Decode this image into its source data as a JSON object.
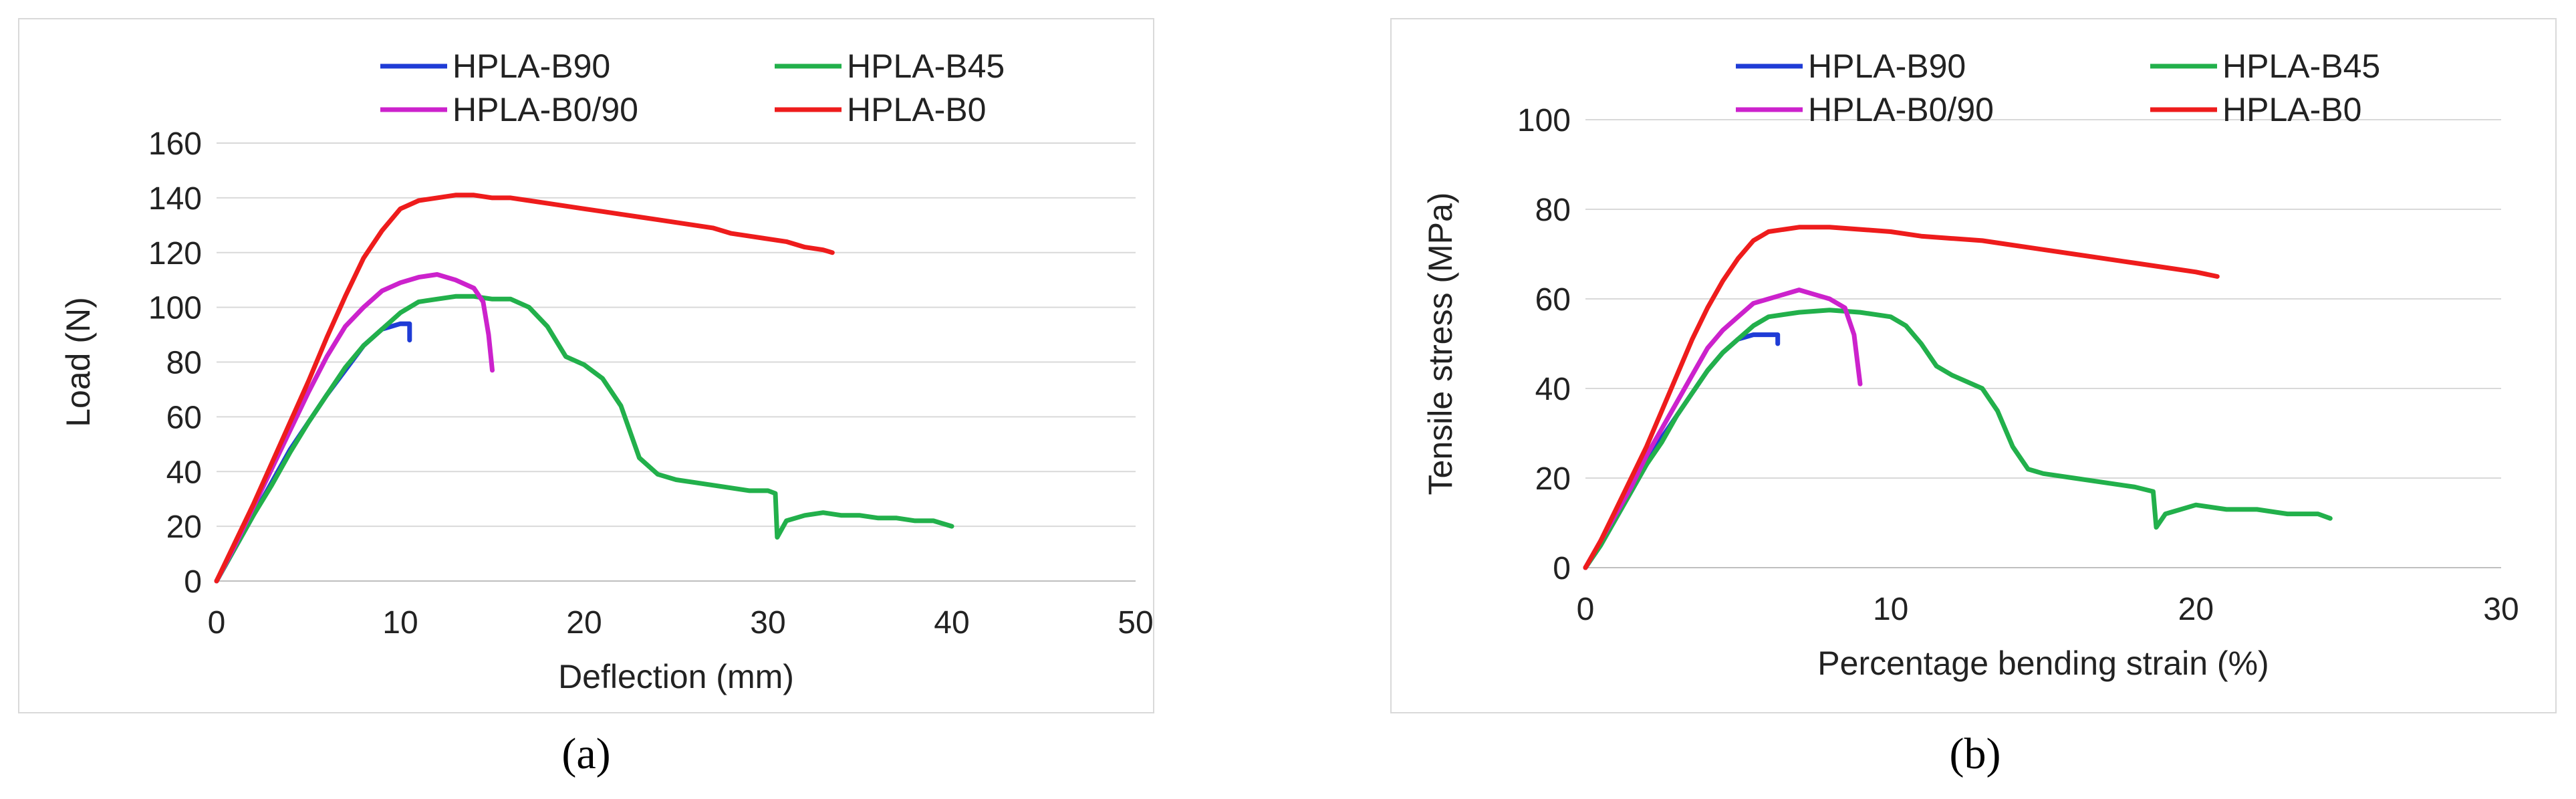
{
  "chart_data": [
    {
      "type": "line",
      "xlabel": "Deflection (mm)",
      "ylabel": "Load (N)",
      "xlim": [
        0,
        50
      ],
      "ylim": [
        0,
        160
      ],
      "xticks": [
        "0",
        "10",
        "20",
        "30",
        "40",
        "50"
      ],
      "yticks": [
        "0",
        "20",
        "40",
        "60",
        "80",
        "100",
        "120",
        "140",
        "160"
      ],
      "grid": "horizontal",
      "legend": "top",
      "series": [
        {
          "name": "HPLA-B90",
          "color": "#1f3cd6",
          "x": [
            0,
            1,
            2,
            3,
            4,
            5,
            6,
            7,
            8,
            9,
            10,
            10.5,
            10.5
          ],
          "y": [
            0,
            12,
            24,
            36,
            48,
            58,
            68,
            77,
            86,
            92,
            94,
            94,
            88
          ]
        },
        {
          "name": "HPLA-B45",
          "color": "#22b04b",
          "x": [
            0,
            1,
            2,
            3,
            4,
            5,
            6,
            7,
            8,
            9,
            10,
            11,
            12,
            13,
            14,
            15,
            16,
            17,
            18,
            19,
            20,
            21,
            22,
            23,
            24,
            25,
            26,
            27,
            28,
            29,
            30,
            30.4,
            30.5,
            31,
            32,
            33,
            34,
            35,
            36,
            37,
            38,
            39,
            40
          ],
          "y": [
            0,
            12,
            24,
            35,
            47,
            58,
            68,
            78,
            86,
            92,
            98,
            102,
            103,
            104,
            104,
            103,
            103,
            100,
            93,
            82,
            79,
            74,
            64,
            45,
            39,
            37,
            36,
            35,
            34,
            33,
            33,
            32,
            16,
            22,
            24,
            25,
            24,
            24,
            23,
            23,
            22,
            22,
            20
          ]
        },
        {
          "name": "HPLA-B0/90",
          "color": "#cc22cc",
          "x": [
            0,
            1,
            2,
            3,
            4,
            5,
            6,
            7,
            8,
            9,
            10,
            11,
            12,
            13,
            14,
            14.5,
            14.8,
            15
          ],
          "y": [
            0,
            13,
            27,
            41,
            55,
            69,
            82,
            93,
            100,
            106,
            109,
            111,
            112,
            110,
            107,
            102,
            90,
            77
          ]
        },
        {
          "name": "HPLA-B0",
          "color": "#ee1c1c",
          "x": [
            0,
            1,
            2,
            3,
            4,
            5,
            6,
            7,
            8,
            9,
            10,
            11,
            12,
            13,
            14,
            15,
            16,
            17,
            18,
            19,
            20,
            21,
            22,
            23,
            24,
            25,
            26,
            27,
            28,
            29,
            30,
            31,
            32,
            33,
            33.5
          ],
          "y": [
            0,
            14,
            28,
            43,
            58,
            73,
            89,
            104,
            118,
            128,
            136,
            139,
            140,
            141,
            141,
            140,
            140,
            139,
            138,
            137,
            136,
            135,
            134,
            133,
            132,
            131,
            130,
            129,
            127,
            126,
            125,
            124,
            122,
            121,
            120
          ]
        }
      ]
    },
    {
      "type": "line",
      "xlabel": "Percentage bending strain (%)",
      "ylabel": "Tensile stress (MPa)",
      "xlim": [
        0,
        30
      ],
      "ylim": [
        0,
        100
      ],
      "xticks": [
        "0",
        "10",
        "20",
        "30"
      ],
      "yticks": [
        "0",
        "20",
        "40",
        "60",
        "80",
        "100"
      ],
      "grid": "horizontal",
      "legend": "top",
      "series": [
        {
          "name": "HPLA-B90",
          "color": "#1f3cd6",
          "x": [
            0,
            0.5,
            1,
            1.5,
            2,
            2.5,
            3,
            3.5,
            4,
            4.5,
            5,
            5.5,
            6,
            6.3,
            6.3
          ],
          "y": [
            0,
            5,
            11,
            17,
            23,
            29,
            34,
            39,
            44,
            48,
            51,
            52,
            52,
            52,
            50
          ]
        },
        {
          "name": "HPLA-B45",
          "color": "#22b04b",
          "x": [
            0,
            0.5,
            1,
            1.5,
            2,
            2.5,
            3,
            3.5,
            4,
            4.5,
            5,
            5.5,
            6,
            7,
            8,
            9,
            10,
            10.5,
            11,
            11.5,
            12,
            13,
            13.5,
            14,
            14.5,
            15,
            16,
            17,
            18,
            18.6,
            18.7,
            19,
            20,
            21,
            22,
            23,
            24,
            24.4
          ],
          "y": [
            0,
            5,
            11,
            17,
            23,
            28,
            34,
            39,
            44,
            48,
            51,
            54,
            56,
            57,
            57.5,
            57,
            56,
            54,
            50,
            45,
            43,
            40,
            35,
            27,
            22,
            21,
            20,
            19,
            18,
            17,
            9,
            12,
            14,
            13,
            13,
            12,
            12,
            11
          ]
        },
        {
          "name": "HPLA-B0/90",
          "color": "#cc22cc",
          "x": [
            0,
            0.5,
            1,
            1.5,
            2,
            2.5,
            3,
            3.5,
            4,
            4.5,
            5,
            5.5,
            6,
            6.5,
            7,
            7.5,
            8,
            8.5,
            8.8,
            9
          ],
          "y": [
            0,
            6,
            12,
            18,
            25,
            31,
            37,
            43,
            49,
            53,
            56,
            59,
            60,
            61,
            62,
            61,
            60,
            58,
            52,
            41
          ]
        },
        {
          "name": "HPLA-B0",
          "color": "#ee1c1c",
          "x": [
            0,
            0.5,
            1,
            1.5,
            2,
            2.5,
            3,
            3.5,
            4,
            4.5,
            5,
            5.5,
            6,
            7,
            8,
            9,
            10,
            11,
            12,
            13,
            14,
            15,
            16,
            17,
            18,
            19,
            20,
            20.7
          ],
          "y": [
            0,
            6,
            13,
            20,
            27,
            35,
            43,
            51,
            58,
            64,
            69,
            73,
            75,
            76,
            76,
            75.5,
            75,
            74,
            73.5,
            73,
            72,
            71,
            70,
            69,
            68,
            67,
            66,
            65
          ]
        }
      ]
    }
  ],
  "captions": [
    "(a)",
    "(b)"
  ]
}
